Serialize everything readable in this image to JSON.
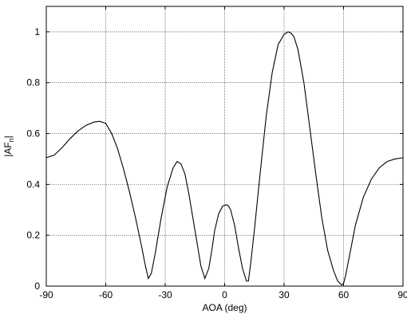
{
  "chart_data": {
    "type": "line",
    "title": "",
    "xlabel": "AOA (deg)",
    "ylabel": {
      "main": "|AF",
      "subscript": "n",
      "suffix": "|"
    },
    "xlim": [
      -90,
      90
    ],
    "ylim": [
      0,
      1.1
    ],
    "xticks": [
      -90,
      -60,
      -30,
      0,
      30,
      60,
      90
    ],
    "xtick_labels": [
      "-90",
      "-60",
      "-30",
      "0",
      "30",
      "60",
      "90"
    ],
    "yticks": [
      0,
      0.2,
      0.4,
      0.6,
      0.8,
      1
    ],
    "ytick_labels": [
      "0",
      "0.2",
      "0.4",
      "0.6",
      "0.8",
      "1"
    ],
    "grid": true,
    "colors": {
      "line": "#000000",
      "grid": "#000000",
      "axis": "#000000",
      "background": "#ffffff"
    },
    "series": [
      {
        "x": [
          -90,
          -86,
          -82,
          -78,
          -74,
          -70,
          -66,
          -63,
          -60,
          -57,
          -54,
          -51,
          -48,
          -45,
          -42,
          -40,
          -38.5,
          -37,
          -35,
          -32,
          -29,
          -26,
          -24,
          -22,
          -20,
          -18,
          -15,
          -12,
          -10,
          -8,
          -6.5,
          -5,
          -3,
          -1,
          1,
          2,
          3,
          5,
          7,
          9,
          11,
          12,
          13,
          15,
          18,
          21,
          24,
          27,
          30,
          32,
          33.5,
          35,
          37,
          40,
          43,
          46,
          49,
          52,
          55,
          57,
          59,
          60,
          61,
          63,
          66,
          70,
          74,
          78,
          82,
          86,
          90
        ],
        "y": [
          0.505,
          0.515,
          0.545,
          0.58,
          0.61,
          0.632,
          0.645,
          0.648,
          0.64,
          0.6,
          0.54,
          0.46,
          0.37,
          0.27,
          0.16,
          0.08,
          0.03,
          0.05,
          0.13,
          0.27,
          0.39,
          0.465,
          0.49,
          0.48,
          0.44,
          0.36,
          0.22,
          0.08,
          0.03,
          0.07,
          0.14,
          0.22,
          0.285,
          0.315,
          0.32,
          0.315,
          0.3,
          0.24,
          0.15,
          0.07,
          0.02,
          0.02,
          0.08,
          0.22,
          0.45,
          0.67,
          0.84,
          0.95,
          0.99,
          1.0,
          0.995,
          0.98,
          0.93,
          0.8,
          0.62,
          0.44,
          0.27,
          0.14,
          0.06,
          0.02,
          0.005,
          0.01,
          0.04,
          0.12,
          0.24,
          0.35,
          0.42,
          0.465,
          0.49,
          0.5,
          0.505
        ]
      }
    ]
  }
}
